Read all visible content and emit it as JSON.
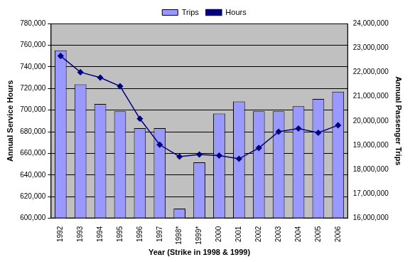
{
  "chart_data": {
    "type": "bar",
    "xlabel": "Year (Strike in 1998 & 1999)",
    "ylabel": "Annual Service Hours",
    "y2label": "Annual Passenger Trips",
    "categories": [
      "1992",
      "1993",
      "1994",
      "1995",
      "1996",
      "1997",
      "1998*",
      "1999*",
      "2000",
      "2001",
      "2002",
      "2003",
      "2004",
      "2005",
      "2006"
    ],
    "series": [
      {
        "name": "Trips",
        "type": "bar",
        "axis": "y2",
        "color": "#9999ff",
        "values": [
          22900000,
          21500000,
          20700000,
          20400000,
          19700000,
          19700000,
          16400000,
          18300000,
          20300000,
          20800000,
          20400000,
          20400000,
          20600000,
          20900000,
          21200000
        ]
      },
      {
        "name": "Hours",
        "type": "line",
        "color": "#000080",
        "marker": "diamond",
        "line_style": "solid",
        "values": [
          750000,
          735000,
          730000,
          722000,
          692000,
          668000,
          657000,
          659000,
          658000,
          655000,
          665000,
          680000,
          683000,
          679000,
          686000
        ]
      }
    ],
    "ylim": [
      600000,
      780000
    ],
    "yticks": [
      {
        "value": 600000,
        "label": "600,000"
      },
      {
        "value": 620000,
        "label": "620,000"
      },
      {
        "value": 640000,
        "label": "640,000"
      },
      {
        "value": 660000,
        "label": "660,000"
      },
      {
        "value": 680000,
        "label": "680,000"
      },
      {
        "value": 700000,
        "label": "700,000"
      },
      {
        "value": 720000,
        "label": "720,000"
      },
      {
        "value": 740000,
        "label": "740,000"
      },
      {
        "value": 760000,
        "label": "760,000"
      },
      {
        "value": 780000,
        "label": "780,000"
      }
    ],
    "y2lim": [
      16000000,
      24000000
    ],
    "y2ticks": [
      {
        "value": 16000000,
        "label": "16,000,000"
      },
      {
        "value": 17000000,
        "label": "17,000,000"
      },
      {
        "value": 18000000,
        "label": "18,000,000"
      },
      {
        "value": 19000000,
        "label": "19,000,000"
      },
      {
        "value": 20000000,
        "label": "20,000,000"
      },
      {
        "value": 21000000,
        "label": "21,000,000"
      },
      {
        "value": 22000000,
        "label": "22,000,000"
      },
      {
        "value": 23000000,
        "label": "23,000,000"
      },
      {
        "value": 24000000,
        "label": "24,000,000"
      }
    ],
    "grid": true,
    "legend": "top"
  }
}
